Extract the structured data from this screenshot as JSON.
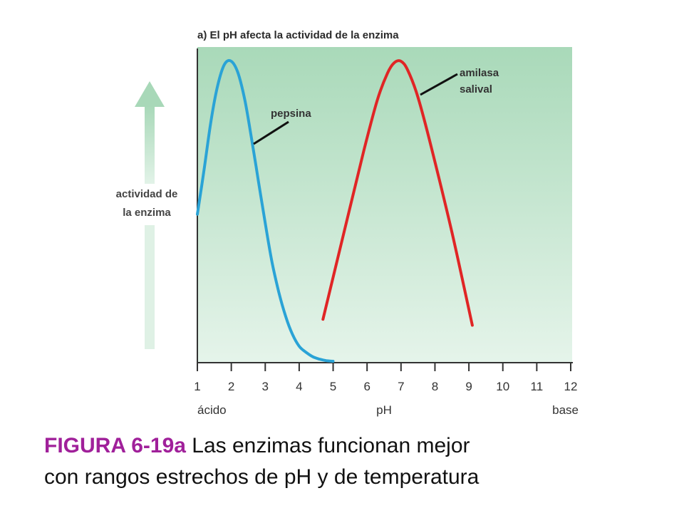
{
  "caption": {
    "label": "FIGURA 6-19a",
    "text_line1": " Las enzimas funcionan mejor",
    "text_line2": "con rangos estrechos de pH y de temperatura"
  },
  "chart_data": {
    "type": "line",
    "title": "a) El pH afecta la actividad de la enzima",
    "xlabel": "pH",
    "x_left_label": "ácido",
    "x_right_label": "base",
    "ylabel_line1": "actividad de",
    "ylabel_line2": "la enzima",
    "xlim": [
      1,
      12
    ],
    "ylim": [
      0,
      1
    ],
    "x_ticks": [
      1,
      2,
      3,
      4,
      5,
      6,
      7,
      8,
      9,
      10,
      11,
      12
    ],
    "grid": false,
    "colors": {
      "background_top": "#a9d9b9",
      "background_bottom": "#e5f4ea",
      "arrow": "#a8d8b8"
    },
    "series": [
      {
        "name": "pepsina",
        "color": "#2aa3d6",
        "x": [
          1.0,
          1.2,
          1.4,
          1.6,
          1.8,
          2.0,
          2.2,
          2.4,
          2.6,
          2.8,
          3.0,
          3.2,
          3.4,
          3.6,
          3.8,
          4.0,
          4.2,
          4.4,
          4.6,
          4.8,
          5.0
        ],
        "y": [
          0.49,
          0.64,
          0.8,
          0.92,
          0.99,
          1.0,
          0.96,
          0.87,
          0.74,
          0.6,
          0.46,
          0.33,
          0.23,
          0.15,
          0.09,
          0.05,
          0.03,
          0.015,
          0.007,
          0.002,
          0.0
        ]
      },
      {
        "name": "amilasa salival",
        "color": "#e02525",
        "x": [
          4.7,
          5.3,
          5.9,
          6.3,
          6.6,
          6.8,
          7.0,
          7.2,
          7.5,
          7.9,
          8.5,
          9.1
        ],
        "y": [
          0.14,
          0.42,
          0.7,
          0.87,
          0.96,
          0.995,
          1.0,
          0.97,
          0.88,
          0.71,
          0.43,
          0.12
        ]
      }
    ]
  }
}
